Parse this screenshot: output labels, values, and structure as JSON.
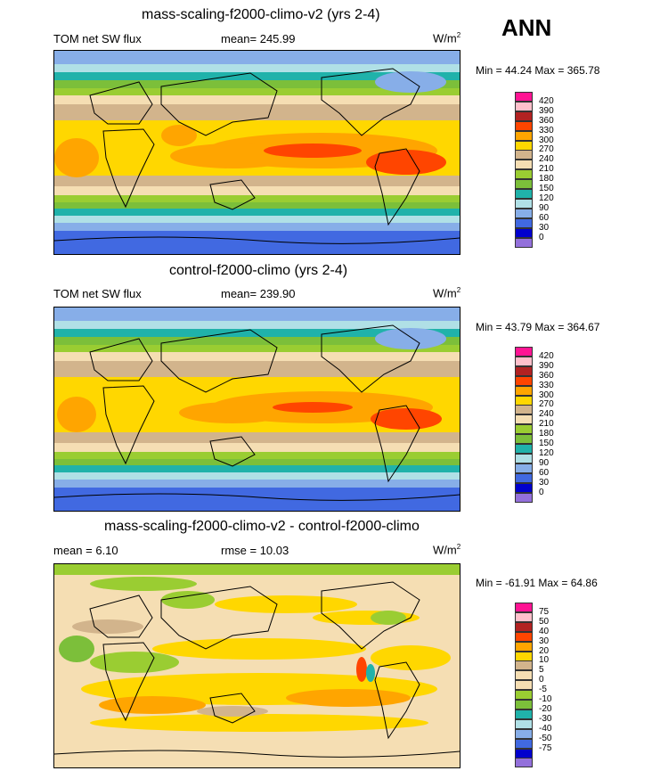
{
  "season": "ANN",
  "panels": [
    {
      "title": "mass-scaling-f2000-climo-v2 (yrs 2-4)",
      "left_label": "TOM net SW flux",
      "center_label": "mean= 245.99",
      "unit_base": "W/m",
      "unit_exp": "2",
      "minmax": "Min =  44.24 Max = 365.78",
      "colorbar": {
        "colors": [
          "#ff1493",
          "#ffc0cb",
          "#b22222",
          "#ff4500",
          "#ffa500",
          "#ffd700",
          "#d2b48c",
          "#f5deb3",
          "#9acd32",
          "#7cbf3a",
          "#20b2aa",
          "#b0e0e6",
          "#87aee8",
          "#4169e1",
          "#0000cd",
          "#9370db"
        ],
        "labels": [
          "420",
          "390",
          "360",
          "330",
          "300",
          "270",
          "240",
          "210",
          "180",
          "150",
          "120",
          "90",
          "60",
          "30",
          "0"
        ]
      }
    },
    {
      "title": "control-f2000-climo (yrs 2-4)",
      "left_label": "TOM net SW flux",
      "center_label": "mean= 239.90",
      "unit_base": "W/m",
      "unit_exp": "2",
      "minmax": "Min =  43.79 Max = 364.67",
      "colorbar": {
        "colors": [
          "#ff1493",
          "#ffc0cb",
          "#b22222",
          "#ff4500",
          "#ffa500",
          "#ffd700",
          "#d2b48c",
          "#f5deb3",
          "#9acd32",
          "#7cbf3a",
          "#20b2aa",
          "#b0e0e6",
          "#87aee8",
          "#4169e1",
          "#0000cd",
          "#9370db"
        ],
        "labels": [
          "420",
          "390",
          "360",
          "330",
          "300",
          "270",
          "240",
          "210",
          "180",
          "150",
          "120",
          "90",
          "60",
          "30",
          "0"
        ]
      }
    },
    {
      "title": "mass-scaling-f2000-climo-v2 - control-f2000-climo",
      "left_label": "mean =   6.10",
      "center_label": "rmse =  10.03",
      "unit_base": "W/m",
      "unit_exp": "2",
      "minmax": "Min = -61.91 Max =  64.86",
      "colorbar": {
        "colors": [
          "#ff1493",
          "#ffc0cb",
          "#b22222",
          "#ff4500",
          "#ffa500",
          "#ffd700",
          "#d2b48c",
          "#f5deb3",
          "#f5deb3",
          "#9acd32",
          "#7cbf3a",
          "#20b2aa",
          "#b0e0e6",
          "#87aee8",
          "#4169e1",
          "#0000cd",
          "#9370db"
        ],
        "labels": [
          "75",
          "50",
          "40",
          "30",
          "20",
          "10",
          "5",
          "0",
          "-5",
          "-10",
          "-20",
          "-30",
          "-40",
          "-50",
          "-75"
        ]
      }
    }
  ]
}
